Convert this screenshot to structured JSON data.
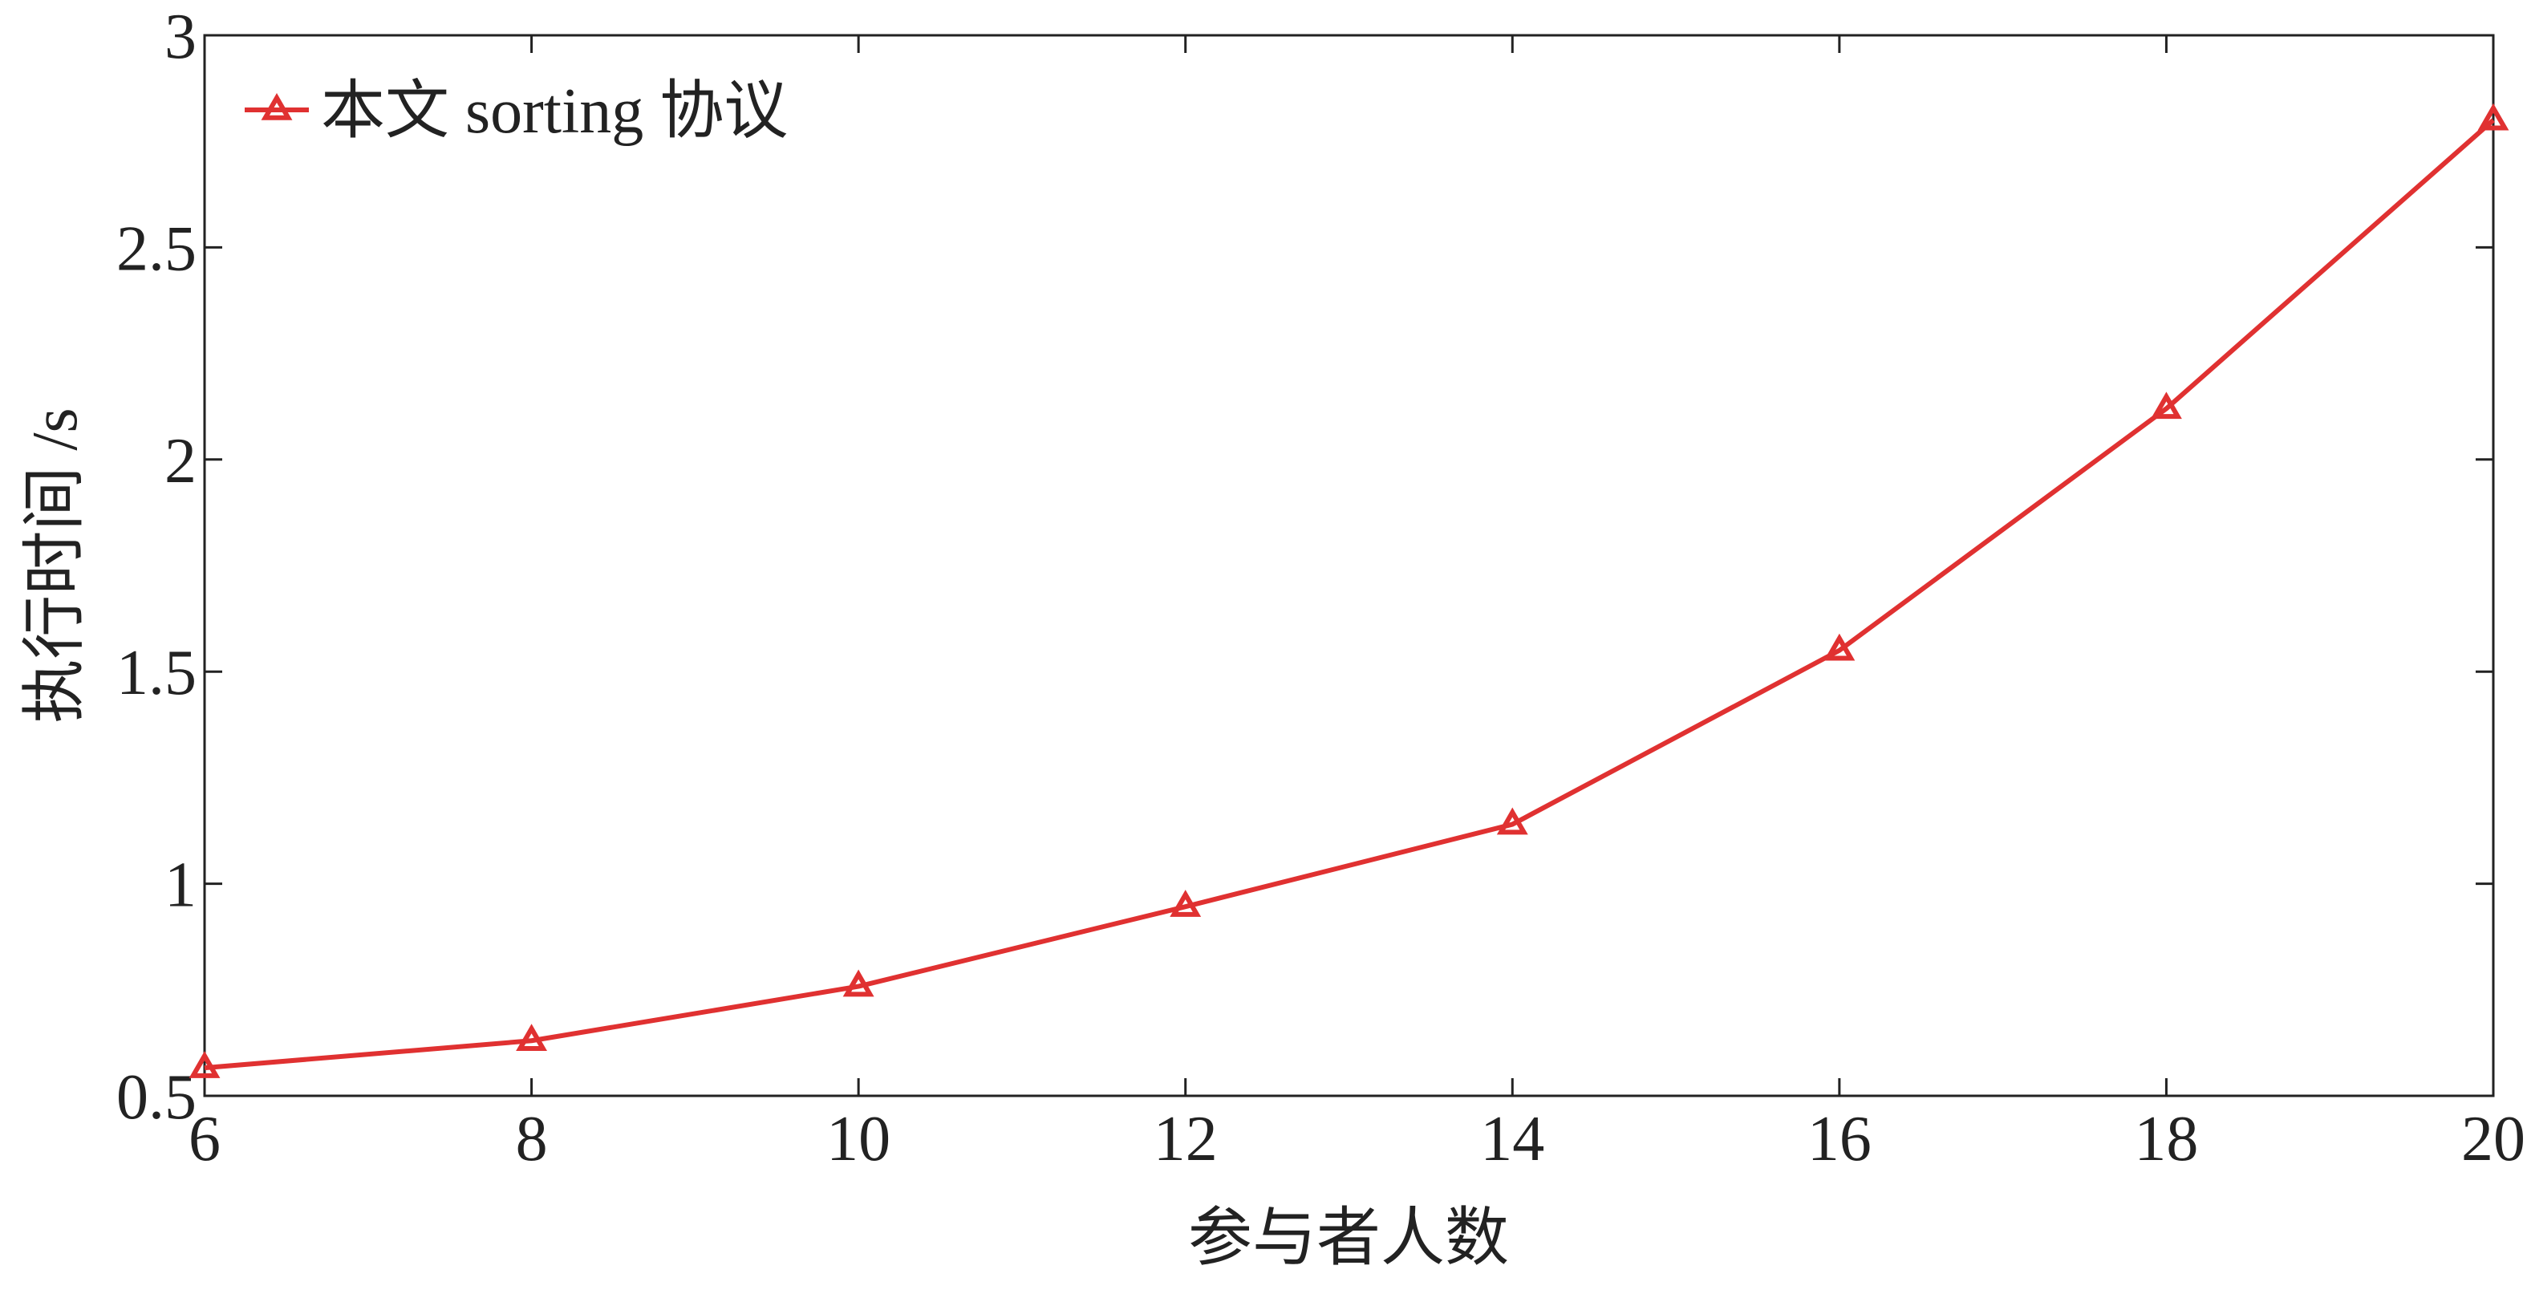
{
  "chart_data": {
    "type": "line",
    "x_label": "参与者人数",
    "y_label": "执行时间 /s",
    "x": [
      6,
      8,
      10,
      12,
      14,
      16,
      18,
      20
    ],
    "series": [
      {
        "name": "本文 sorting 协议",
        "color": "#e03131",
        "marker": "triangle",
        "values": [
          0.566,
          0.63,
          0.758,
          0.946,
          1.14,
          1.55,
          2.12,
          2.8
        ]
      }
    ],
    "xlim": [
      6,
      20
    ],
    "xticks": [
      6,
      8,
      10,
      12,
      14,
      16,
      18,
      20
    ],
    "ylim": [
      0.5,
      3
    ],
    "yticks": [
      0.5,
      1,
      1.5,
      2,
      2.5,
      3
    ],
    "grid": false,
    "legend": "upper left"
  }
}
